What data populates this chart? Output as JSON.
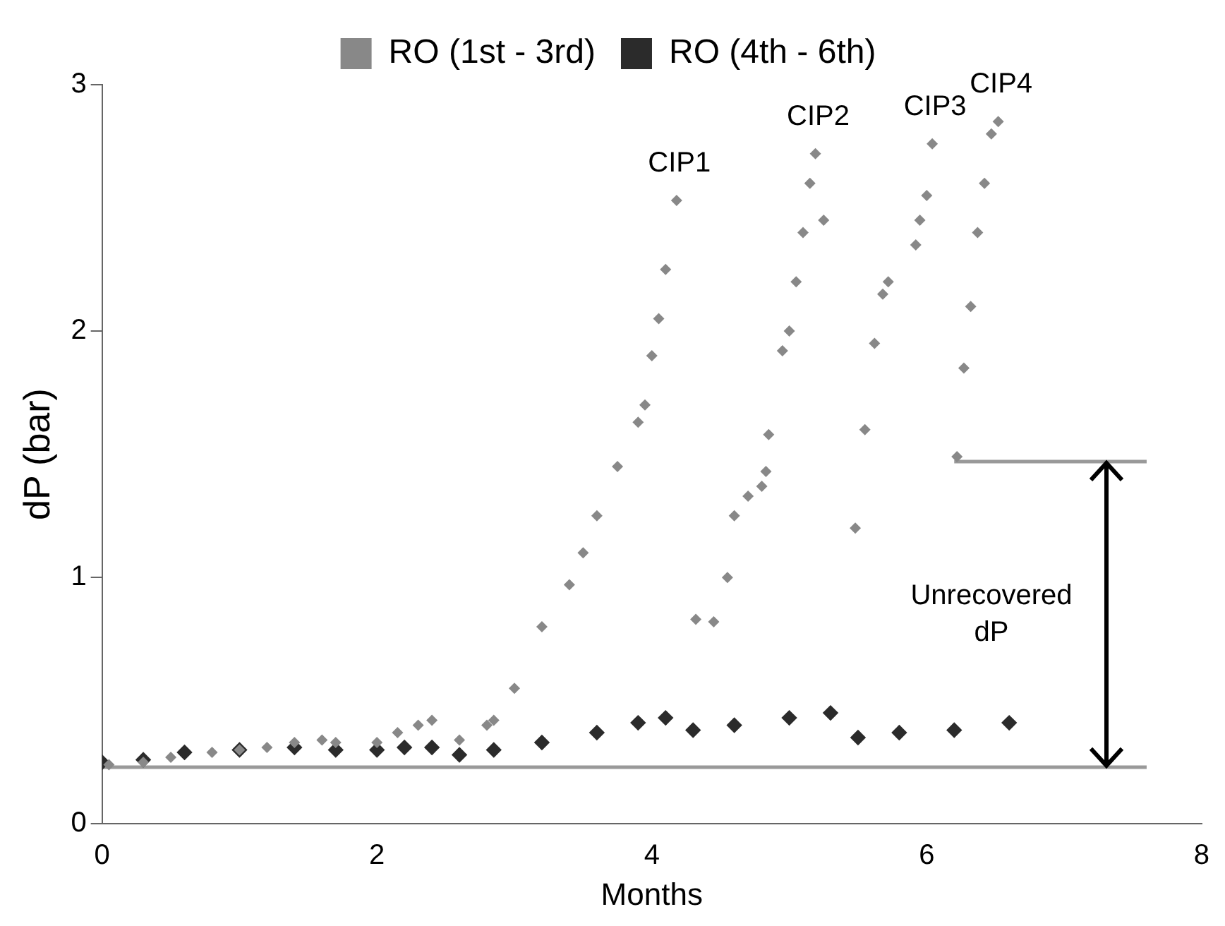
{
  "chart_data": {
    "type": "scatter",
    "xlabel": "Months",
    "ylabel": "dP (bar)",
    "xlim": [
      0,
      8
    ],
    "xticks": [
      0,
      2,
      4,
      6,
      8
    ],
    "ylim": [
      0,
      3
    ],
    "yticks": [
      0,
      1,
      2,
      3
    ],
    "grid": false,
    "legend": "top",
    "marker": "diamond",
    "series": [
      {
        "name": "RO (1st - 3rd)",
        "color": "#888888",
        "x": [
          0.05,
          0.3,
          0.5,
          0.8,
          1.0,
          1.2,
          1.4,
          1.6,
          1.7,
          2.0,
          2.15,
          2.3,
          2.4,
          2.6,
          2.8,
          2.85,
          3.0,
          3.2,
          3.4,
          3.5,
          3.6,
          3.75,
          3.9,
          3.95,
          4.0,
          4.05,
          4.1,
          4.18,
          4.32,
          4.45,
          4.55,
          4.6,
          4.7,
          4.8,
          4.83,
          4.85,
          4.95,
          5.0,
          5.05,
          5.1,
          5.15,
          5.19,
          5.25,
          5.48,
          5.55,
          5.62,
          5.68,
          5.72,
          5.92,
          5.95,
          6.0,
          6.04,
          6.22,
          6.27,
          6.32,
          6.37,
          6.42,
          6.47,
          6.52
        ],
        "values": [
          0.24,
          0.25,
          0.27,
          0.29,
          0.3,
          0.31,
          0.33,
          0.34,
          0.33,
          0.33,
          0.37,
          0.4,
          0.42,
          0.34,
          0.4,
          0.42,
          0.55,
          0.8,
          0.97,
          1.1,
          1.25,
          1.45,
          1.63,
          1.7,
          1.9,
          2.05,
          2.25,
          2.53,
          0.83,
          0.82,
          1.0,
          1.25,
          1.33,
          1.37,
          1.43,
          1.58,
          1.92,
          2.0,
          2.2,
          2.4,
          2.6,
          2.72,
          2.45,
          1.2,
          1.6,
          1.95,
          2.15,
          2.2,
          2.35,
          2.45,
          2.55,
          2.76,
          1.49,
          1.85,
          2.1,
          2.4,
          2.6,
          2.8,
          2.85
        ]
      },
      {
        "name": "RO (4th - 6th)",
        "color": "#2b2b2b",
        "x": [
          0,
          0.3,
          0.6,
          1.0,
          1.4,
          1.7,
          2.0,
          2.2,
          2.4,
          2.6,
          2.85,
          3.2,
          3.6,
          3.9,
          4.1,
          4.3,
          4.6,
          5.0,
          5.3,
          5.5,
          5.8,
          6.2,
          6.6
        ],
        "values": [
          0.25,
          0.26,
          0.29,
          0.3,
          0.31,
          0.3,
          0.3,
          0.31,
          0.31,
          0.28,
          0.3,
          0.33,
          0.37,
          0.41,
          0.43,
          0.38,
          0.4,
          0.43,
          0.45,
          0.35,
          0.37,
          0.38,
          0.41
        ]
      },
      {
        "type": "line",
        "marker": "none",
        "color": "#999999",
        "x": [
          0,
          7.6
        ],
        "values": [
          0.23,
          0.23
        ]
      },
      {
        "type": "line",
        "marker": "none",
        "color": "#999999",
        "x": [
          6.2,
          7.6
        ],
        "values": [
          1.47,
          1.47
        ]
      }
    ],
    "annotations": [
      "CIP1",
      "CIP2",
      "CIP3",
      "CIP4",
      "Unrecovered dP"
    ]
  }
}
